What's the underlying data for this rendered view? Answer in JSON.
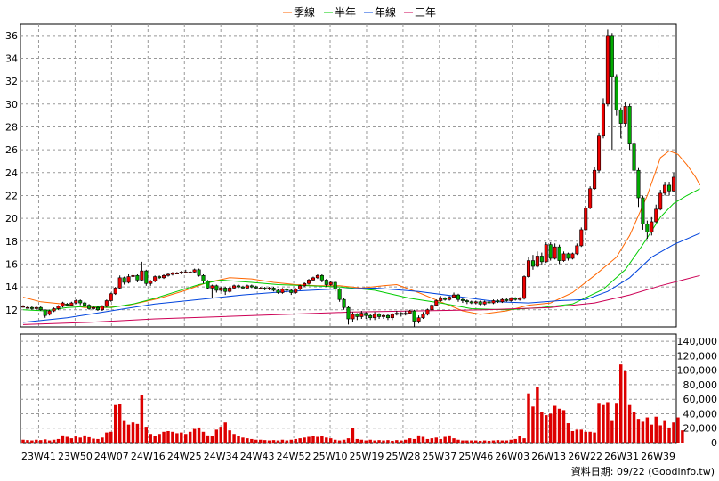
{
  "chart_data": {
    "type": "candlestick",
    "legend": [
      {
        "name": "季線",
        "color": "#ff6600"
      },
      {
        "name": "半年",
        "color": "#00cc00"
      },
      {
        "name": "年線",
        "color": "#0044dd"
      },
      {
        "name": "三年",
        "color": "#cc0055"
      }
    ],
    "price_axis": {
      "ticks": [
        "12",
        "14",
        "16",
        "18",
        "20",
        "22",
        "24",
        "26",
        "28",
        "30",
        "32",
        "34",
        "36"
      ],
      "ylim": [
        10.5,
        37
      ]
    },
    "volume_axis": {
      "ticks": [
        "0",
        "20,000",
        "40,000",
        "60,000",
        "80,000",
        "100,000",
        "120,000",
        "140,000"
      ],
      "ylim": [
        0,
        150000
      ]
    },
    "x_ticks": [
      "23W41",
      "23W50",
      "24W07",
      "24W16",
      "24W25",
      "24W34",
      "24W43",
      "24W52",
      "25W10",
      "25W19",
      "25W28",
      "25W37",
      "25W46",
      "26W03",
      "26W13",
      "26W22",
      "26W31",
      "26W39"
    ],
    "footer": "資料日期: 09/22 (Goodinfo.tw)",
    "up_color": "#ee0000",
    "down_color": "#00aa00",
    "volume_color": "#dd0000",
    "candles": [
      [
        12.3,
        12.3,
        12.4,
        12.2
      ],
      [
        12.2,
        12.2,
        12.3,
        12.1
      ],
      [
        12.2,
        12.1,
        12.3,
        12.0
      ],
      [
        12.1,
        12.2,
        12.3,
        12.0
      ],
      [
        12.2,
        12.0,
        12.3,
        11.9
      ],
      [
        12.0,
        11.5,
        12.0,
        11.3
      ],
      [
        11.6,
        11.9,
        12.0,
        11.5
      ],
      [
        11.9,
        12.1,
        12.2,
        11.8
      ],
      [
        12.1,
        12.3,
        12.4,
        12.0
      ],
      [
        12.3,
        12.6,
        12.7,
        12.2
      ],
      [
        12.5,
        12.4,
        12.6,
        12.3
      ],
      [
        12.4,
        12.6,
        12.7,
        12.3
      ],
      [
        12.6,
        12.8,
        12.9,
        12.5
      ],
      [
        12.8,
        12.6,
        12.9,
        12.4
      ],
      [
        12.6,
        12.4,
        12.7,
        12.3
      ],
      [
        12.4,
        12.1,
        12.5,
        12.0
      ],
      [
        12.1,
        12.2,
        12.3,
        12.0
      ],
      [
        12.2,
        12.0,
        12.3,
        11.9
      ],
      [
        12.0,
        12.3,
        12.4,
        11.9
      ],
      [
        12.3,
        12.8,
        12.9,
        12.2
      ],
      [
        12.8,
        13.4,
        13.5,
        12.7
      ],
      [
        13.4,
        13.9,
        14.0,
        13.3
      ],
      [
        13.9,
        14.8,
        15.0,
        13.8
      ],
      [
        14.8,
        14.4,
        14.9,
        14.2
      ],
      [
        14.4,
        14.9,
        15.1,
        14.3
      ],
      [
        14.9,
        15.0,
        15.3,
        14.7
      ],
      [
        15.0,
        14.6,
        15.1,
        14.4
      ],
      [
        14.6,
        15.4,
        16.2,
        14.5
      ],
      [
        15.4,
        14.3,
        15.5,
        14.1
      ],
      [
        14.3,
        14.5,
        14.6,
        14.1
      ],
      [
        14.5,
        14.9,
        15.0,
        14.4
      ],
      [
        14.9,
        14.8,
        15.0,
        14.7
      ],
      [
        14.8,
        15.0,
        15.1,
        14.7
      ],
      [
        15.0,
        15.1,
        15.2,
        14.9
      ],
      [
        15.1,
        15.2,
        15.3,
        15.0
      ],
      [
        15.2,
        15.2,
        15.3,
        15.1
      ],
      [
        15.2,
        15.3,
        15.4,
        15.1
      ],
      [
        15.3,
        15.3,
        15.5,
        15.2
      ],
      [
        15.3,
        15.3,
        15.4,
        15.2
      ],
      [
        15.3,
        15.5,
        15.6,
        15.2
      ],
      [
        15.5,
        15.0,
        15.6,
        14.9
      ],
      [
        15.0,
        14.5,
        15.1,
        14.3
      ],
      [
        14.5,
        13.9,
        14.6,
        13.8
      ],
      [
        13.9,
        14.1,
        14.2,
        13.0
      ],
      [
        14.1,
        13.7,
        14.2,
        13.5
      ],
      [
        13.7,
        13.9,
        14.0,
        13.6
      ],
      [
        13.9,
        13.6,
        14.0,
        13.3
      ],
      [
        13.6,
        13.9,
        14.0,
        13.5
      ],
      [
        13.9,
        14.1,
        14.2,
        13.8
      ],
      [
        14.1,
        14.0,
        14.2,
        13.9
      ],
      [
        14.0,
        13.9,
        14.1,
        13.8
      ],
      [
        13.9,
        14.1,
        14.2,
        13.8
      ],
      [
        14.1,
        14.0,
        14.2,
        13.9
      ],
      [
        14.0,
        13.9,
        14.1,
        13.8
      ],
      [
        13.9,
        13.9,
        14.0,
        13.8
      ],
      [
        13.9,
        13.8,
        14.0,
        13.7
      ],
      [
        13.8,
        13.9,
        14.0,
        13.7
      ],
      [
        13.9,
        13.7,
        14.0,
        13.6
      ],
      [
        13.7,
        13.5,
        13.8,
        13.4
      ],
      [
        13.5,
        13.8,
        13.9,
        13.4
      ],
      [
        13.8,
        13.7,
        13.9,
        13.5
      ],
      [
        13.7,
        13.5,
        13.8,
        13.3
      ],
      [
        13.5,
        13.8,
        13.9,
        13.4
      ],
      [
        13.8,
        14.1,
        14.2,
        13.7
      ],
      [
        14.1,
        14.3,
        14.4,
        14.0
      ],
      [
        14.3,
        14.6,
        14.7,
        14.2
      ],
      [
        14.6,
        14.8,
        14.9,
        14.5
      ],
      [
        14.8,
        15.0,
        15.1,
        14.7
      ],
      [
        15.0,
        14.6,
        15.1,
        14.4
      ],
      [
        14.6,
        14.2,
        14.7,
        14.0
      ],
      [
        14.2,
        14.4,
        14.5,
        14.1
      ],
      [
        14.4,
        13.8,
        14.5,
        13.6
      ],
      [
        13.8,
        12.9,
        13.9,
        12.7
      ],
      [
        12.9,
        12.2,
        13.0,
        12.0
      ],
      [
        12.2,
        11.2,
        12.3,
        10.7
      ],
      [
        11.2,
        11.6,
        11.8,
        10.9
      ],
      [
        11.6,
        11.4,
        11.7,
        11.1
      ],
      [
        11.4,
        11.7,
        11.9,
        11.2
      ],
      [
        11.7,
        11.5,
        11.8,
        11.2
      ],
      [
        11.5,
        11.3,
        11.6,
        11.1
      ],
      [
        11.3,
        11.6,
        11.8,
        11.1
      ],
      [
        11.6,
        11.4,
        11.7,
        11.2
      ],
      [
        11.4,
        11.5,
        11.6,
        11.2
      ],
      [
        11.5,
        11.3,
        11.6,
        11.1
      ],
      [
        11.3,
        11.6,
        11.7,
        11.1
      ],
      [
        11.6,
        11.7,
        11.9,
        11.5
      ],
      [
        11.7,
        11.6,
        11.8,
        11.4
      ],
      [
        11.6,
        11.7,
        11.9,
        11.5
      ],
      [
        11.7,
        11.9,
        12.0,
        11.6
      ],
      [
        11.9,
        11.0,
        12.0,
        10.5
      ],
      [
        11.0,
        11.3,
        11.5,
        10.8
      ],
      [
        11.3,
        11.6,
        11.8,
        11.2
      ],
      [
        11.6,
        12.0,
        12.1,
        11.5
      ],
      [
        12.0,
        12.4,
        12.5,
        11.9
      ],
      [
        12.4,
        12.8,
        12.9,
        12.3
      ],
      [
        12.8,
        13.0,
        13.2,
        12.7
      ],
      [
        13.0,
        12.9,
        13.1,
        12.8
      ],
      [
        12.9,
        13.1,
        13.2,
        12.8
      ],
      [
        13.1,
        13.3,
        13.5,
        13.0
      ],
      [
        13.3,
        12.9,
        13.4,
        12.7
      ],
      [
        12.9,
        12.8,
        13.0,
        12.6
      ],
      [
        12.8,
        12.7,
        12.9,
        12.5
      ],
      [
        12.7,
        12.6,
        12.8,
        12.5
      ],
      [
        12.6,
        12.7,
        12.8,
        12.5
      ],
      [
        12.7,
        12.5,
        12.8,
        12.4
      ],
      [
        12.5,
        12.7,
        12.8,
        12.4
      ],
      [
        12.7,
        12.6,
        12.8,
        12.5
      ],
      [
        12.6,
        12.8,
        12.9,
        12.5
      ],
      [
        12.8,
        12.7,
        12.9,
        12.6
      ],
      [
        12.7,
        12.9,
        13.0,
        12.6
      ],
      [
        12.9,
        12.8,
        13.0,
        12.7
      ],
      [
        12.8,
        13.0,
        13.1,
        12.7
      ],
      [
        13.0,
        12.9,
        13.1,
        12.8
      ],
      [
        12.9,
        13.0,
        13.1,
        12.8
      ],
      [
        13.0,
        14.9,
        15.0,
        12.9
      ],
      [
        14.9,
        16.3,
        16.6,
        14.8
      ],
      [
        16.3,
        15.8,
        16.8,
        15.5
      ],
      [
        15.8,
        16.7,
        17.1,
        15.7
      ],
      [
        16.7,
        16.2,
        17.0,
        15.9
      ],
      [
        16.2,
        17.7,
        17.9,
        16.1
      ],
      [
        17.7,
        16.5,
        17.9,
        16.3
      ],
      [
        16.5,
        17.5,
        17.8,
        16.4
      ],
      [
        17.5,
        16.3,
        17.7,
        16.0
      ],
      [
        16.3,
        16.9,
        17.1,
        16.2
      ],
      [
        16.9,
        16.5,
        17.0,
        16.3
      ],
      [
        16.5,
        16.9,
        17.0,
        16.4
      ],
      [
        16.9,
        17.6,
        17.8,
        16.8
      ],
      [
        17.6,
        19.0,
        19.2,
        17.5
      ],
      [
        19.0,
        20.9,
        21.1,
        18.9
      ],
      [
        20.9,
        22.6,
        22.8,
        20.8
      ],
      [
        22.6,
        24.2,
        24.5,
        22.5
      ],
      [
        24.2,
        27.2,
        27.5,
        24.0
      ],
      [
        27.2,
        30.0,
        30.5,
        27.0
      ],
      [
        30.0,
        36.0,
        36.5,
        29.8
      ],
      [
        36.0,
        32.4,
        36.2,
        26.0
      ],
      [
        32.4,
        29.5,
        32.6,
        29.0
      ],
      [
        29.5,
        28.3,
        29.7,
        27.0
      ],
      [
        28.3,
        29.8,
        30.2,
        28.0
      ],
      [
        29.8,
        26.5,
        30.0,
        26.0
      ],
      [
        26.5,
        24.2,
        26.8,
        23.8
      ],
      [
        24.2,
        21.8,
        24.4,
        21.0
      ],
      [
        21.8,
        19.5,
        22.0,
        19.0
      ],
      [
        19.5,
        18.8,
        19.8,
        18.2
      ],
      [
        18.8,
        19.7,
        20.1,
        18.5
      ],
      [
        19.7,
        20.8,
        21.2,
        19.6
      ],
      [
        20.8,
        22.2,
        22.5,
        20.7
      ],
      [
        22.2,
        22.9,
        23.2,
        22.0
      ],
      [
        22.9,
        22.4,
        23.2,
        22.0
      ],
      [
        22.4,
        23.6,
        24.0,
        22.3
      ]
    ],
    "volumes": [
      4000,
      3500,
      3000,
      4000,
      3500,
      4500,
      3000,
      4000,
      5000,
      10000,
      8000,
      6000,
      8500,
      7000,
      10000,
      7500,
      5500,
      5000,
      7000,
      14000,
      15000,
      52000,
      53000,
      30000,
      25000,
      28000,
      26000,
      66000,
      22000,
      12000,
      9000,
      12000,
      15000,
      16000,
      15000,
      13000,
      14000,
      12000,
      15000,
      19000,
      21000,
      15000,
      10000,
      9000,
      18000,
      22000,
      28000,
      17000,
      12000,
      9000,
      7000,
      6000,
      5000,
      4000,
      4000,
      3500,
      3000,
      3500,
      3000,
      4000,
      3000,
      4000,
      5000,
      6000,
      7000,
      8000,
      9000,
      8000,
      9000,
      7000,
      6000,
      4000,
      3000,
      4000,
      6000,
      20000,
      5000,
      4000,
      3000,
      4000,
      3000,
      3500,
      3000,
      3500,
      2500,
      3500,
      3000,
      4000,
      6000,
      5000,
      10000,
      8000,
      5000,
      6000,
      7000,
      5000,
      8000,
      10000,
      6000,
      4000,
      3000,
      3000,
      3000,
      3000,
      2500,
      3000,
      2500,
      3000,
      3500,
      3000,
      3000,
      4000,
      5000,
      9000,
      6000,
      68000,
      50000,
      77000,
      42000,
      38000,
      40000,
      51000,
      47000,
      45000,
      27000,
      16000,
      18000,
      18000,
      15000,
      15000,
      14000,
      55000,
      52000,
      56000,
      30000,
      55000,
      108000,
      99000,
      52000,
      42000,
      33000,
      29000,
      35000,
      25000,
      36000,
      24000,
      30000,
      21000,
      28000,
      35000,
      17000
    ],
    "ma_quarter": [
      [
        13.1,
        0
      ],
      [
        12.7,
        4
      ],
      [
        12.5,
        9
      ],
      [
        12.2,
        14
      ],
      [
        12.2,
        19
      ],
      [
        12.4,
        24
      ],
      [
        13.0,
        31
      ],
      [
        13.7,
        37
      ],
      [
        14.4,
        42
      ],
      [
        14.8,
        47
      ],
      [
        14.7,
        52
      ],
      [
        14.4,
        57
      ],
      [
        14.2,
        62
      ],
      [
        14.1,
        67
      ],
      [
        14.1,
        72
      ],
      [
        13.9,
        77
      ],
      [
        14.1,
        82
      ],
      [
        14.2,
        85
      ],
      [
        13.5,
        90
      ],
      [
        12.7,
        95
      ],
      [
        11.9,
        100
      ],
      [
        11.6,
        104
      ],
      [
        11.9,
        110
      ],
      [
        12.4,
        115
      ],
      [
        12.6,
        120
      ],
      [
        13.5,
        125
      ],
      [
        15.0,
        130
      ],
      [
        16.6,
        135
      ],
      [
        18.5,
        138
      ],
      [
        22.0,
        142
      ],
      [
        25.3,
        145
      ],
      [
        25.9,
        147
      ],
      [
        25.6,
        149
      ],
      [
        24.7,
        151
      ],
      [
        23.6,
        153
      ],
      [
        22.9,
        154
      ]
    ],
    "ma_half": [
      [
        12.0,
        0
      ],
      [
        11.9,
        5
      ],
      [
        12.2,
        10
      ],
      [
        12.3,
        15
      ],
      [
        12.2,
        20
      ],
      [
        12.5,
        25
      ],
      [
        13.0,
        30
      ],
      [
        13.6,
        35
      ],
      [
        14.2,
        40
      ],
      [
        14.6,
        45
      ],
      [
        14.4,
        52
      ],
      [
        14.2,
        58
      ],
      [
        14.1,
        65
      ],
      [
        14.0,
        72
      ],
      [
        13.7,
        80
      ],
      [
        13.0,
        88
      ],
      [
        12.6,
        95
      ],
      [
        12.1,
        102
      ],
      [
        12.0,
        110
      ],
      [
        12.2,
        118
      ],
      [
        12.5,
        125
      ],
      [
        13.8,
        132
      ],
      [
        15.5,
        137
      ],
      [
        17.7,
        141
      ],
      [
        20.1,
        145
      ],
      [
        21.3,
        148
      ],
      [
        22.0,
        151
      ],
      [
        22.6,
        154
      ]
    ],
    "ma_year": [
      [
        10.9,
        0
      ],
      [
        11.3,
        10
      ],
      [
        11.9,
        20
      ],
      [
        12.5,
        30
      ],
      [
        12.9,
        40
      ],
      [
        13.3,
        50
      ],
      [
        13.6,
        60
      ],
      [
        13.8,
        70
      ],
      [
        13.9,
        80
      ],
      [
        13.6,
        90
      ],
      [
        13.1,
        100
      ],
      [
        12.7,
        108
      ],
      [
        12.6,
        115
      ],
      [
        12.8,
        122
      ],
      [
        12.9,
        128
      ],
      [
        13.6,
        133
      ],
      [
        14.8,
        138
      ],
      [
        16.6,
        143
      ],
      [
        17.7,
        148
      ],
      [
        18.7,
        154
      ]
    ],
    "ma_3year": [
      [
        10.7,
        0
      ],
      [
        10.9,
        15
      ],
      [
        11.2,
        30
      ],
      [
        11.4,
        45
      ],
      [
        11.6,
        60
      ],
      [
        11.8,
        75
      ],
      [
        11.9,
        90
      ],
      [
        12.0,
        105
      ],
      [
        12.2,
        120
      ],
      [
        12.6,
        130
      ],
      [
        13.3,
        138
      ],
      [
        14.1,
        145
      ],
      [
        14.6,
        150
      ],
      [
        15.0,
        154
      ]
    ]
  }
}
